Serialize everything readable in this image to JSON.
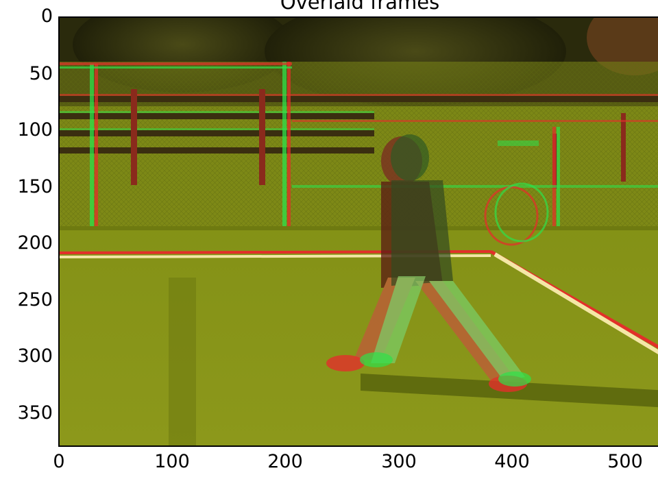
{
  "figure": {
    "title": "Overlaid frames"
  },
  "axes": {
    "y_ticks": [
      "0",
      "50",
      "100",
      "150",
      "200",
      "250",
      "300",
      "350"
    ],
    "x_ticks": [
      "0",
      "100",
      "200",
      "300",
      "400",
      "500"
    ]
  },
  "image": {
    "subject": "tennis-player-frame-overlay",
    "colors": {
      "court": "#7f8f16",
      "trees": "#2c2c0d",
      "frame_a": "#e2302a",
      "frame_b": "#2fe04a",
      "line": "#f4e7a6"
    }
  }
}
